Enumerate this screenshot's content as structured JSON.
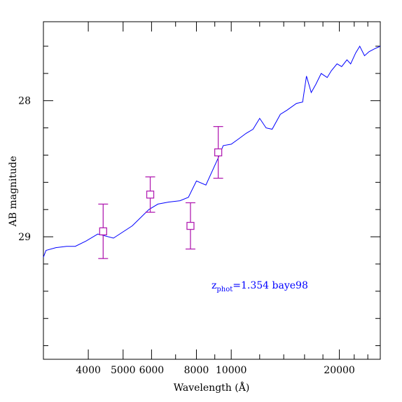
{
  "chart_data": {
    "type": "line",
    "xlabel": "Wavelength (Å)",
    "ylabel": "AB magnitude",
    "x_scale": "log",
    "xlim": [
      3000,
      26000
    ],
    "ylim": [
      29.9,
      27.42
    ],
    "y_inverted": true,
    "x_major_ticks": [
      4000,
      5000,
      6000,
      8000,
      10000,
      20000
    ],
    "x_major_tick_labels": [
      "4000",
      "5000",
      "6000",
      "8000",
      "10000",
      "20000"
    ],
    "y_major_ticks": [
      28,
      29
    ],
    "y_major_tick_labels": [
      "28",
      "29"
    ],
    "y_minor_ticks": [
      27.6,
      27.8,
      28.2,
      28.4,
      28.6,
      28.8,
      29.2,
      29.4,
      29.6,
      29.8
    ],
    "annotation": {
      "main": "z",
      "subscript": "phot",
      "text": "=1.354 baye98",
      "color": "#0000ff"
    },
    "series": [
      {
        "kind": "model_sed",
        "color": "#0000ff",
        "x": [
          3000,
          3050,
          3250,
          3480,
          3680,
          3950,
          4250,
          4700,
          5300,
          5900,
          6250,
          6700,
          7200,
          7600,
          8000,
          8500,
          9200,
          9500,
          10000,
          10500,
          11000,
          11500,
          12000,
          12500,
          13000,
          13700,
          14300,
          15200,
          15800,
          16200,
          16700,
          17200,
          17800,
          18500,
          19000,
          19700,
          20300,
          21000,
          21500,
          22200,
          22800,
          23500,
          24200,
          25000,
          26000
        ],
        "y": [
          29.15,
          29.1,
          29.08,
          29.07,
          29.07,
          29.03,
          28.98,
          29.01,
          28.92,
          28.8,
          28.76,
          28.745,
          28.735,
          28.71,
          28.59,
          28.62,
          28.42,
          28.33,
          28.32,
          28.28,
          28.24,
          28.21,
          28.13,
          28.2,
          28.21,
          28.1,
          28.07,
          28.02,
          28.01,
          27.82,
          27.94,
          27.88,
          27.8,
          27.83,
          27.78,
          27.73,
          27.75,
          27.7,
          27.73,
          27.65,
          27.6,
          27.67,
          27.64,
          27.62,
          27.6
        ]
      },
      {
        "kind": "photometry",
        "color": "#b21fb2",
        "marker": "square",
        "x": [
          4400,
          5950,
          7700,
          9200
        ],
        "y": [
          28.96,
          28.69,
          28.92,
          28.38
        ],
        "yerr": [
          0.2,
          0.13,
          0.17,
          0.19
        ]
      }
    ]
  }
}
